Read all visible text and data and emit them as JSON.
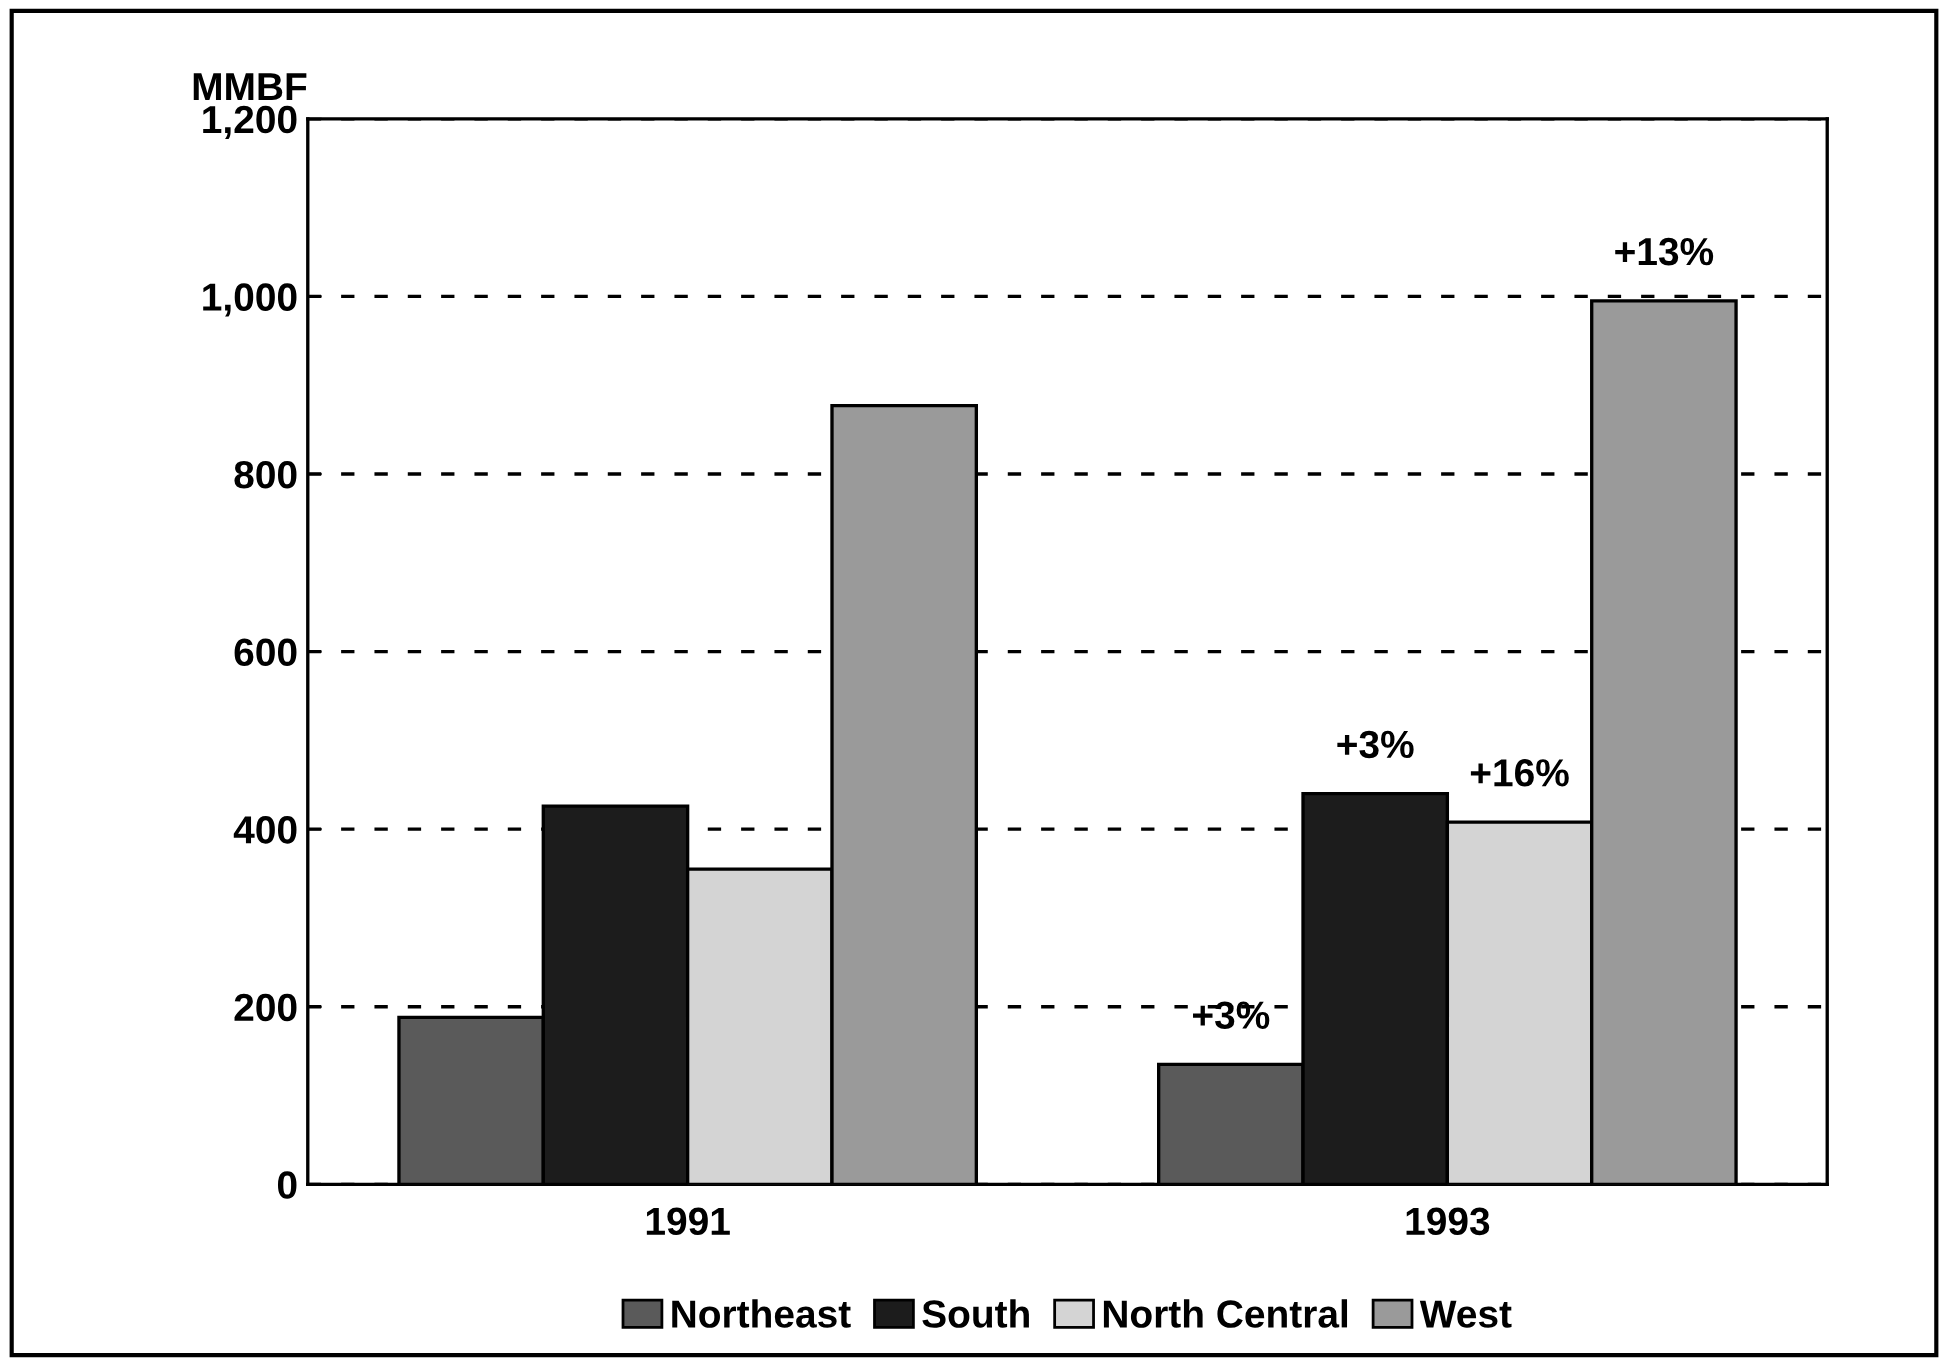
{
  "chart_data": {
    "type": "bar",
    "ylabel": "MMBF",
    "categories": [
      "1991",
      "1993"
    ],
    "series": [
      {
        "name": "Northeast",
        "color": "#5a5a5a",
        "values": [
          188,
          135
        ]
      },
      {
        "name": "South",
        "color": "#1c1c1c",
        "values": [
          426,
          440
        ]
      },
      {
        "name": "North Central",
        "color": "#d4d4d4",
        "values": [
          355,
          408
        ]
      },
      {
        "name": "West",
        "color": "#9a9a9a",
        "values": [
          877,
          995
        ]
      }
    ],
    "annotations": [
      "+3%",
      "+3%",
      "+16%",
      "+13%"
    ],
    "ylim": [
      0,
      1200
    ],
    "yticks": [
      0,
      200,
      400,
      600,
      800,
      {
        "value": 1000,
        "label": "1,000"
      },
      {
        "value": 1200,
        "label": "1,200"
      }
    ],
    "grid": "y",
    "legend": "bottom"
  }
}
